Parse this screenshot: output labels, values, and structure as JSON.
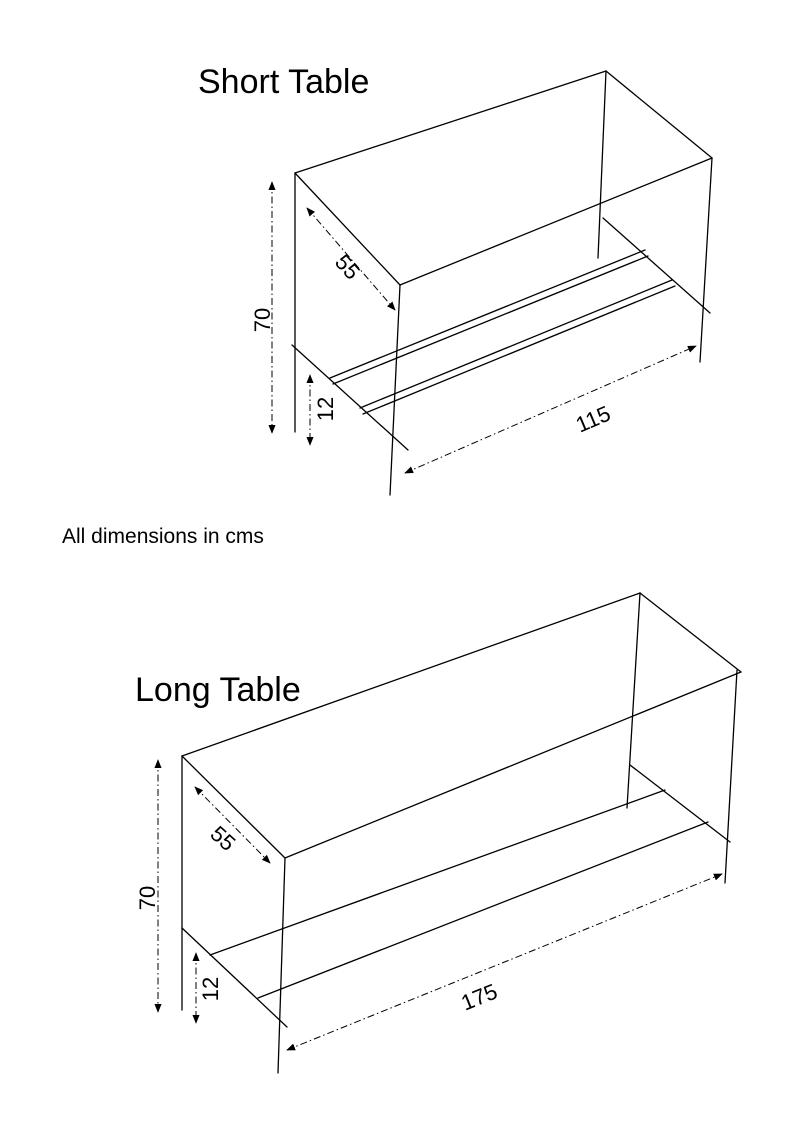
{
  "note": "All dimensions in cms",
  "tables": [
    {
      "title": "Short Table",
      "dimensions": {
        "height": "70",
        "depth": "55",
        "shelf_height": "12",
        "length": "115"
      }
    },
    {
      "title": "Long Table",
      "dimensions": {
        "height": "70",
        "depth": "55",
        "shelf_height": "12",
        "length": "175"
      }
    }
  ]
}
